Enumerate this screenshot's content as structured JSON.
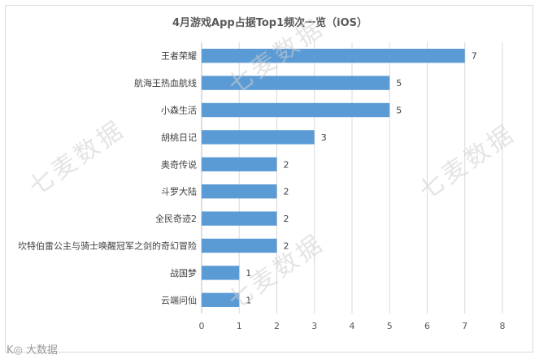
{
  "watermark": "七麦数据",
  "footer_logo": "K◎ 大数据",
  "chart_data": {
    "type": "bar",
    "orientation": "horizontal",
    "title": "4月游戏App占据Top1频次一览（iOS）",
    "categories": [
      "王者荣耀",
      "航海王热血航线",
      "小森生活",
      "胡桃日记",
      "奥奇传说",
      "斗罗大陆",
      "全民奇迹2",
      "坎特伯雷公主与骑士唤醒冠军之剑的奇幻冒险",
      "战国梦",
      "云端问仙"
    ],
    "values": [
      7,
      5,
      5,
      3,
      2,
      2,
      2,
      2,
      1,
      1
    ],
    "xlim": [
      0,
      8
    ],
    "xticks": [
      0,
      1,
      2,
      3,
      4,
      5,
      6,
      7,
      8
    ],
    "grid": true,
    "bar_color": "#5b9bd5",
    "data_labels": true
  }
}
